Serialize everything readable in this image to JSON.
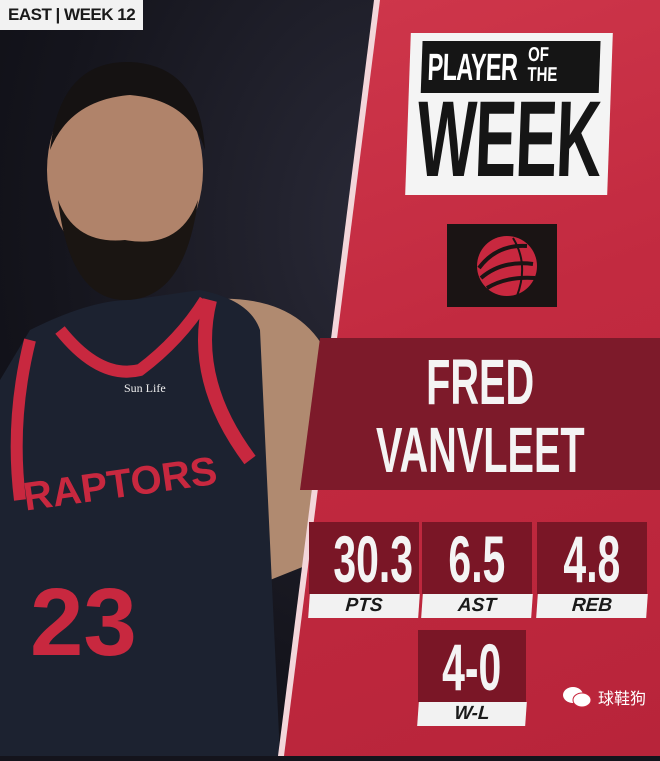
{
  "tag": "EAST | WEEK 12",
  "title": {
    "line1": "PLAYER",
    "line1b": "OF THE",
    "line2": "WEEK"
  },
  "team_logo": "raptors-basketball-claw-icon",
  "player": {
    "first": "FRED",
    "last": "VANVLEET"
  },
  "jersey": {
    "team": "RAPTORS",
    "number": "23",
    "sponsor": "Sun Life"
  },
  "stats": [
    {
      "value": "30.3",
      "label": "PTS"
    },
    {
      "value": "6.5",
      "label": "AST"
    },
    {
      "value": "4.8",
      "label": "REB"
    },
    {
      "value": "4-0",
      "label": "W-L"
    }
  ],
  "watermark": "球鞋狗",
  "colors": {
    "panel": "#c8283f",
    "band": "#7d1a2a",
    "stat_box": "#7a1626"
  }
}
